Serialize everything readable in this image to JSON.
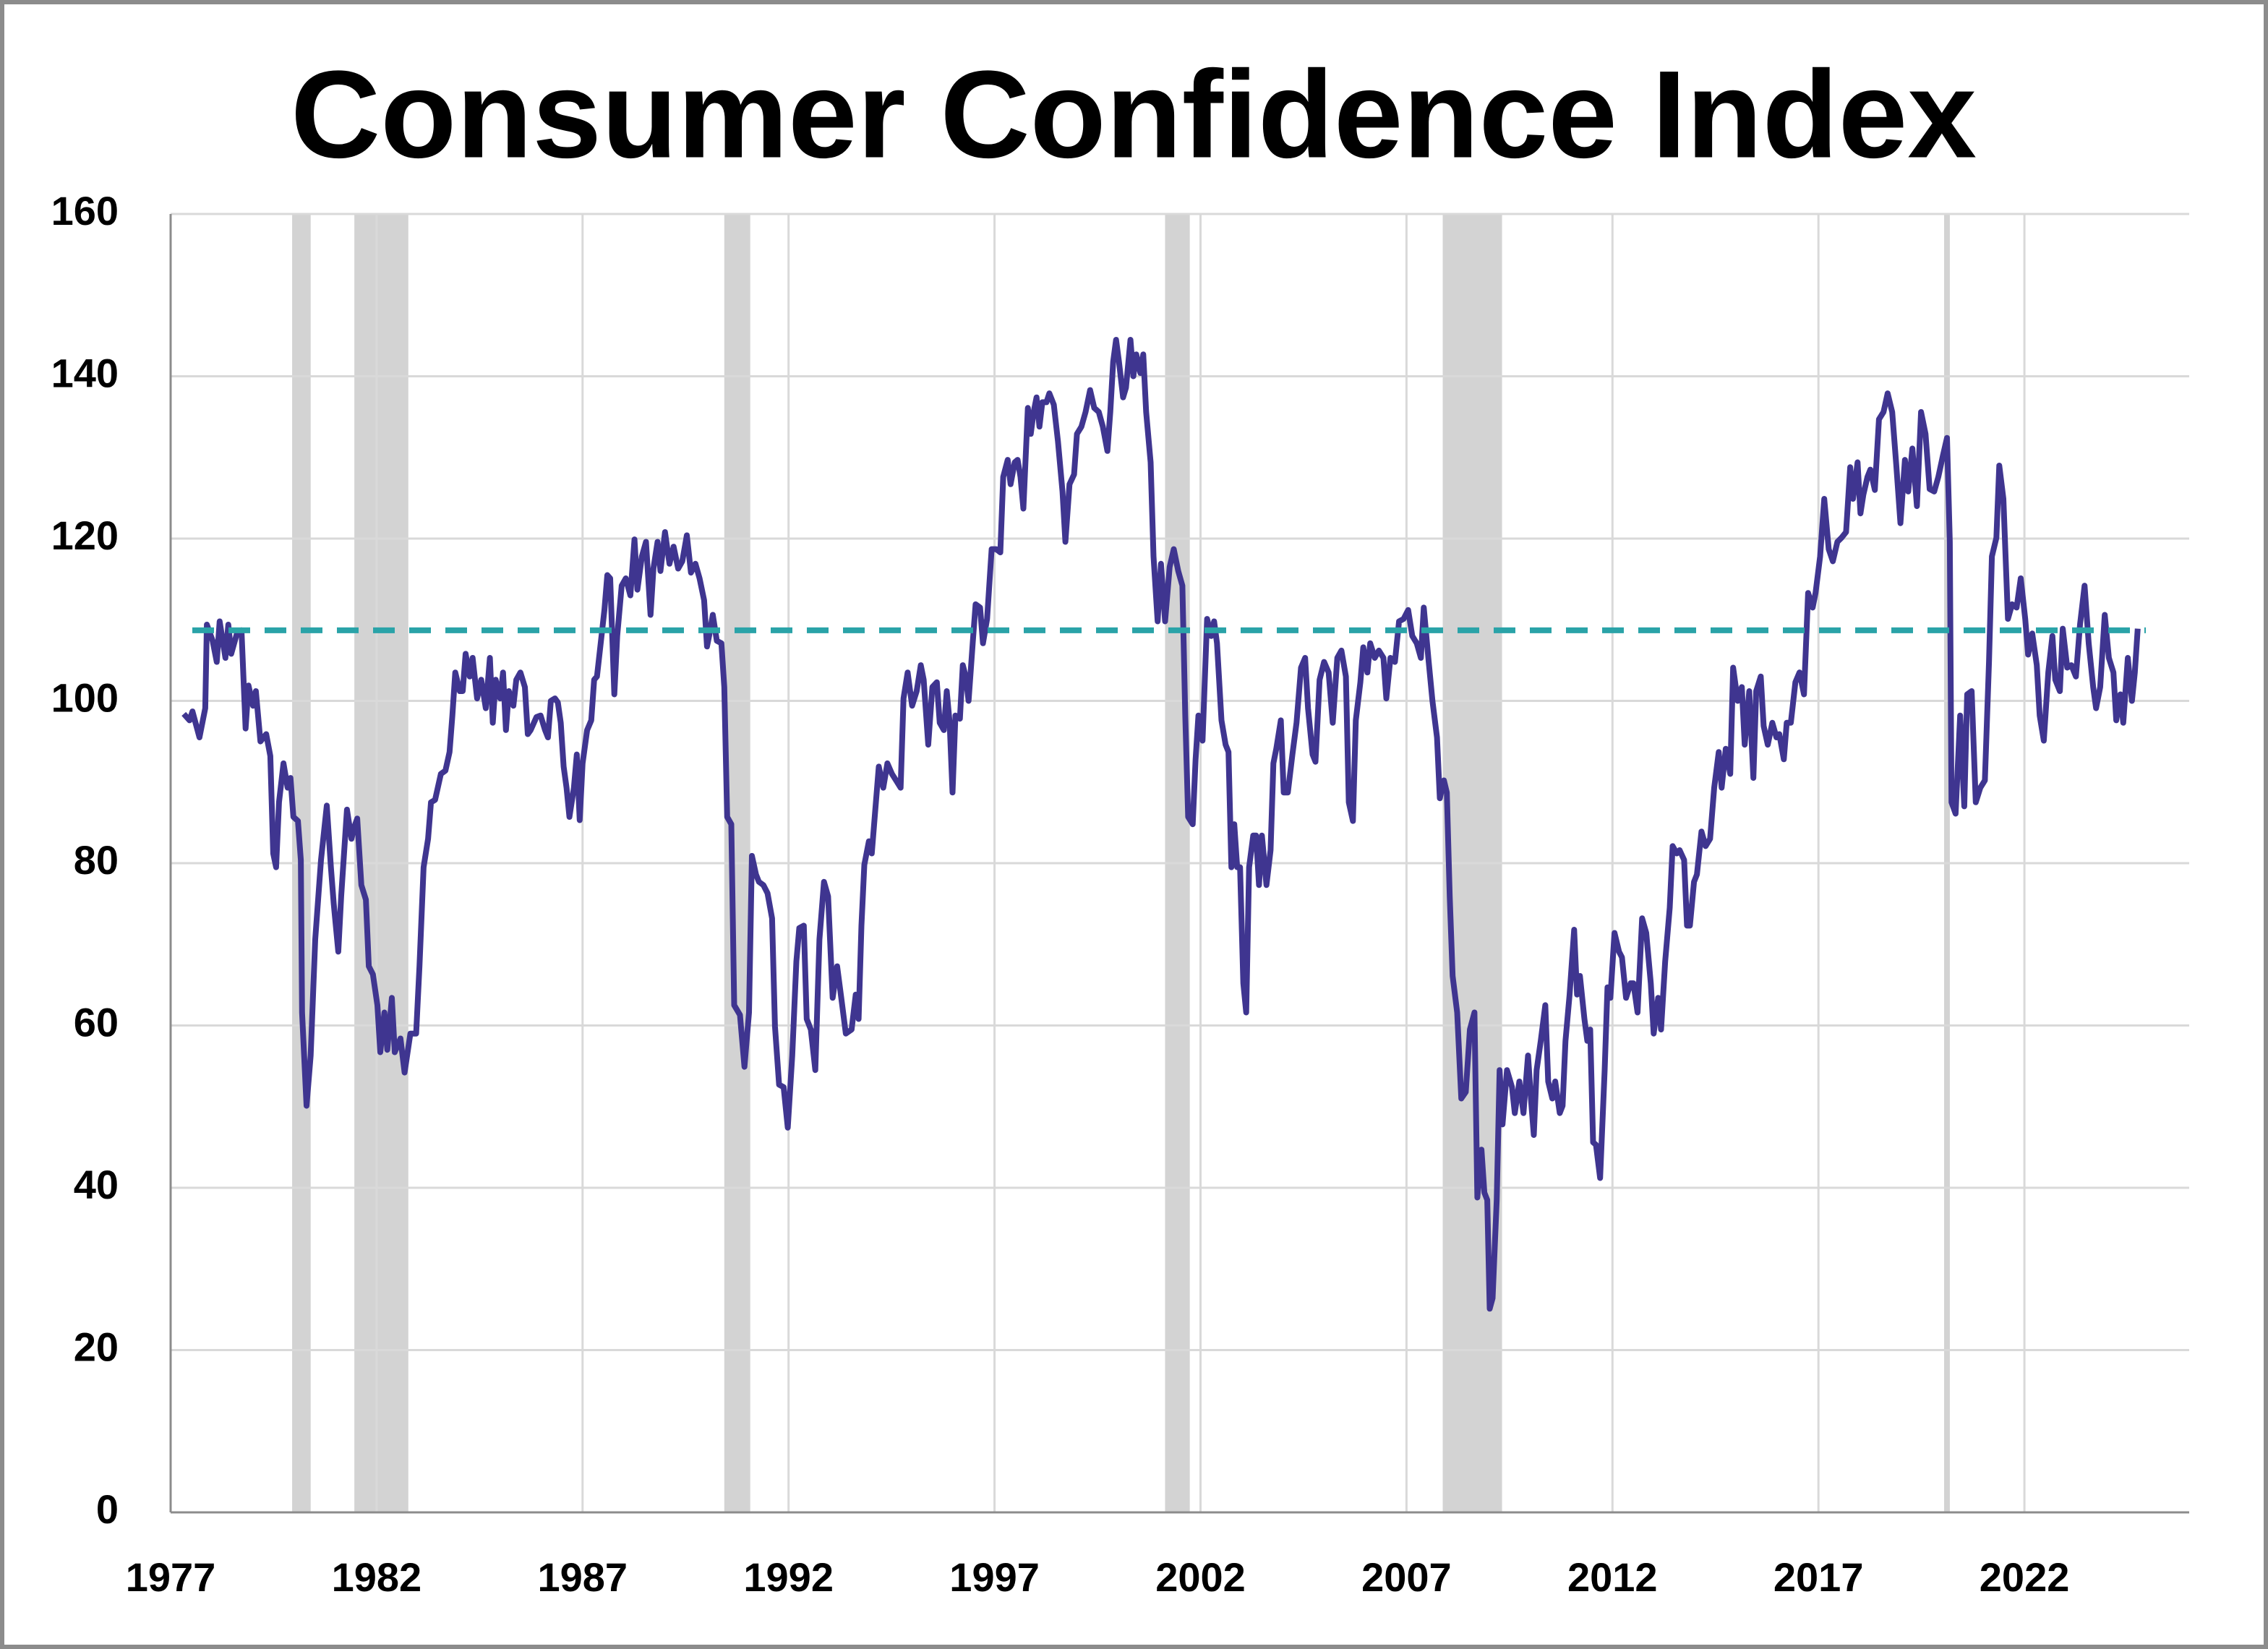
{
  "chart_data": {
    "type": "line",
    "title": "Consumer Confidence Index",
    "x": [
      1977.32,
      1977.46,
      1977.53,
      1977.7,
      1977.84,
      1977.88,
      1978.02,
      1978.12,
      1978.19,
      1978.33,
      1978.4,
      1978.47,
      1978.61,
      1978.72,
      1978.82,
      1978.89,
      1979.0,
      1979.07,
      1979.18,
      1979.32,
      1979.42,
      1979.49,
      1979.56,
      1979.63,
      1979.74,
      1979.84,
      1979.91,
      1979.98,
      1980.09,
      1980.16,
      1980.19,
      1980.3,
      1980.4,
      1980.51,
      1980.65,
      1980.79,
      1980.89,
      1980.96,
      1981.07,
      1981.14,
      1981.28,
      1981.39,
      1981.46,
      1981.53,
      1981.63,
      1981.74,
      1981.81,
      1981.91,
      1982.02,
      1982.09,
      1982.19,
      1982.26,
      1982.37,
      1982.44,
      1982.58,
      1982.68,
      1982.82,
      1982.96,
      1983.04,
      1983.14,
      1983.25,
      1983.32,
      1983.42,
      1983.56,
      1983.67,
      1983.77,
      1983.84,
      1983.91,
      1984.02,
      1984.09,
      1984.16,
      1984.26,
      1984.33,
      1984.44,
      1984.54,
      1984.65,
      1984.75,
      1984.82,
      1984.89,
      1985.0,
      1985.07,
      1985.14,
      1985.21,
      1985.32,
      1985.39,
      1985.49,
      1985.6,
      1985.67,
      1985.74,
      1985.88,
      1985.98,
      1986.09,
      1986.16,
      1986.23,
      1986.33,
      1986.4,
      1986.47,
      1986.54,
      1986.61,
      1986.68,
      1986.79,
      1986.86,
      1986.93,
      1987.0,
      1987.11,
      1987.21,
      1987.28,
      1987.35,
      1987.46,
      1987.53,
      1987.6,
      1987.67,
      1987.77,
      1987.84,
      1987.95,
      1988.05,
      1988.16,
      1988.26,
      1988.33,
      1988.44,
      1988.54,
      1988.65,
      1988.72,
      1988.82,
      1988.89,
      1989.0,
      1989.11,
      1989.21,
      1989.32,
      1989.42,
      1989.53,
      1989.63,
      1989.74,
      1989.84,
      1989.95,
      1990.02,
      1990.09,
      1990.16,
      1990.26,
      1990.37,
      1990.44,
      1990.51,
      1990.61,
      1990.68,
      1990.82,
      1990.93,
      1991.04,
      1991.11,
      1991.21,
      1991.28,
      1991.39,
      1991.49,
      1991.6,
      1991.67,
      1991.77,
      1991.88,
      1991.98,
      1992.09,
      1992.19,
      1992.26,
      1992.37,
      1992.44,
      1992.54,
      1992.65,
      1992.75,
      1992.86,
      1992.96,
      1993.07,
      1993.18,
      1993.28,
      1993.39,
      1993.53,
      1993.63,
      1993.7,
      1993.77,
      1993.84,
      1993.95,
      1994.02,
      1994.12,
      1994.19,
      1994.3,
      1994.4,
      1994.51,
      1994.61,
      1994.72,
      1994.79,
      1994.89,
      1995.0,
      1995.11,
      1995.21,
      1995.28,
      1995.39,
      1995.49,
      1995.6,
      1995.67,
      1995.77,
      1995.84,
      1995.91,
      1995.98,
      1996.05,
      1996.16,
      1996.23,
      1996.3,
      1996.37,
      1996.47,
      1996.54,
      1996.65,
      1996.72,
      1996.82,
      1996.93,
      1997.04,
      1997.14,
      1997.21,
      1997.32,
      1997.39,
      1997.49,
      1997.56,
      1997.63,
      1997.7,
      1997.81,
      1997.88,
      1997.95,
      1998.02,
      1998.09,
      1998.16,
      1998.26,
      1998.33,
      1998.44,
      1998.54,
      1998.65,
      1998.72,
      1998.82,
      1998.93,
      1999.0,
      1999.11,
      1999.21,
      1999.32,
      1999.42,
      1999.53,
      1999.63,
      1999.74,
      1999.81,
      1999.88,
      1999.95,
      2000.02,
      2000.12,
      2000.19,
      2000.3,
      2000.37,
      2000.44,
      2000.54,
      2000.61,
      2000.68,
      2000.79,
      2000.86,
      2000.96,
      2001.04,
      2001.14,
      2001.25,
      2001.35,
      2001.46,
      2001.56,
      2001.63,
      2001.7,
      2001.81,
      2001.88,
      2001.95,
      2002.05,
      2002.16,
      2002.26,
      2002.33,
      2002.4,
      2002.51,
      2002.61,
      2002.68,
      2002.75,
      2002.82,
      2002.89,
      2002.96,
      2003.04,
      2003.11,
      2003.18,
      2003.28,
      2003.35,
      2003.42,
      2003.49,
      2003.6,
      2003.7,
      2003.77,
      2003.84,
      2003.95,
      2004.02,
      2004.12,
      2004.23,
      2004.33,
      2004.44,
      2004.54,
      2004.61,
      2004.72,
      2004.79,
      2004.89,
      2005.0,
      2005.11,
      2005.21,
      2005.32,
      2005.42,
      2005.53,
      2005.6,
      2005.7,
      2005.77,
      2005.88,
      2005.95,
      2006.05,
      2006.12,
      2006.23,
      2006.33,
      2006.44,
      2006.51,
      2006.61,
      2006.72,
      2006.82,
      2006.93,
      2007.04,
      2007.14,
      2007.25,
      2007.35,
      2007.42,
      2007.53,
      2007.63,
      2007.74,
      2007.81,
      2007.91,
      2007.98,
      2008.05,
      2008.12,
      2008.23,
      2008.33,
      2008.44,
      2008.54,
      2008.65,
      2008.72,
      2008.82,
      2008.89,
      2008.96,
      2009.02,
      2009.09,
      2009.19,
      2009.26,
      2009.33,
      2009.44,
      2009.56,
      2009.63,
      2009.74,
      2009.84,
      2009.95,
      2010.02,
      2010.09,
      2010.16,
      2010.26,
      2010.37,
      2010.44,
      2010.54,
      2010.61,
      2010.72,
      2010.79,
      2010.86,
      2010.96,
      2011.07,
      2011.14,
      2011.21,
      2011.32,
      2011.39,
      2011.46,
      2011.53,
      2011.6,
      2011.7,
      2011.81,
      2011.88,
      2011.95,
      2012.05,
      2012.16,
      2012.23,
      2012.33,
      2012.44,
      2012.51,
      2012.61,
      2012.72,
      2012.82,
      2012.93,
      2013.0,
      2013.11,
      2013.18,
      2013.28,
      2013.39,
      2013.46,
      2013.56,
      2013.63,
      2013.74,
      2013.81,
      2013.88,
      2013.98,
      2014.05,
      2014.16,
      2014.26,
      2014.37,
      2014.47,
      2014.58,
      2014.65,
      2014.75,
      2014.86,
      2014.93,
      2015.04,
      2015.14,
      2015.21,
      2015.32,
      2015.42,
      2015.49,
      2015.6,
      2015.67,
      2015.77,
      2015.88,
      2015.98,
      2016.05,
      2016.16,
      2016.23,
      2016.33,
      2016.44,
      2016.54,
      2016.65,
      2016.75,
      2016.86,
      2016.93,
      2017.04,
      2017.14,
      2017.25,
      2017.35,
      2017.46,
      2017.56,
      2017.67,
      2017.77,
      2017.84,
      2017.95,
      2018.02,
      2018.09,
      2018.19,
      2018.26,
      2018.37,
      2018.47,
      2018.58,
      2018.68,
      2018.79,
      2018.89,
      2018.99,
      2019.1,
      2019.18,
      2019.28,
      2019.39,
      2019.49,
      2019.6,
      2019.7,
      2019.81,
      2019.91,
      2020.02,
      2020.12,
      2020.19,
      2020.23,
      2020.33,
      2020.44,
      2020.54,
      2020.61,
      2020.72,
      2020.82,
      2020.93,
      2021.04,
      2021.14,
      2021.21,
      2021.32,
      2021.39,
      2021.49,
      2021.6,
      2021.7,
      2021.81,
      2021.91,
      2022.02,
      2022.09,
      2022.19,
      2022.3,
      2022.37,
      2022.47,
      2022.58,
      2022.68,
      2022.75,
      2022.86,
      2022.93,
      2023.04,
      2023.14,
      2023.25,
      2023.35,
      2023.46,
      2023.56,
      2023.67,
      2023.74,
      2023.84,
      2023.95,
      2024.05,
      2024.16,
      2024.23,
      2024.33,
      2024.4,
      2024.51,
      2024.61,
      2024.68,
      2024.75
    ],
    "values": [
      98.4,
      97.6,
      98.7,
      95.5,
      99.1,
      109.4,
      107.4,
      104.8,
      109.8,
      105.3,
      109.4,
      105.8,
      108.3,
      108.7,
      96.6,
      101.9,
      99.4,
      101.2,
      95.0,
      95.9,
      93.2,
      81.2,
      79.5,
      87.5,
      92.3,
      89.3,
      90.5,
      85.7,
      85.2,
      80.4,
      61.6,
      50.1,
      56.3,
      70.6,
      80.4,
      87.1,
      79.5,
      75.0,
      69.1,
      75.9,
      86.6,
      83.0,
      84.5,
      85.5,
      77.3,
      75.5,
      67.3,
      66.3,
      62.5,
      56.7,
      61.6,
      57.0,
      63.4,
      56.7,
      58.4,
      54.2,
      59.0,
      59.0,
      67.3,
      79.5,
      83.0,
      87.5,
      87.8,
      91.0,
      91.4,
      93.7,
      98.2,
      103.5,
      101.2,
      101.2,
      105.8,
      103.0,
      105.3,
      100.3,
      102.6,
      99.1,
      105.3,
      97.3,
      102.6,
      100.3,
      103.5,
      96.4,
      101.2,
      99.4,
      102.6,
      103.5,
      101.7,
      95.9,
      96.4,
      98.0,
      98.2,
      96.4,
      95.5,
      100.0,
      100.3,
      99.8,
      97.3,
      91.9,
      89.3,
      85.7,
      89.3,
      93.4,
      85.3,
      92.3,
      96.4,
      97.6,
      102.6,
      103.0,
      108.0,
      111.2,
      115.5,
      115.1,
      100.8,
      108.0,
      114.2,
      115.1,
      113.0,
      119.9,
      113.7,
      117.8,
      119.6,
      110.6,
      116.3,
      119.6,
      116.0,
      120.8,
      116.9,
      119.0,
      116.3,
      117.2,
      120.4,
      115.8,
      116.9,
      115.1,
      112.4,
      106.7,
      108.5,
      110.6,
      107.4,
      107.1,
      101.7,
      85.7,
      84.8,
      62.5,
      61.3,
      54.9,
      61.6,
      80.9,
      78.6,
      77.7,
      77.3,
      76.3,
      73.2,
      59.9,
      52.7,
      52.4,
      47.4,
      56.3,
      67.9,
      72.0,
      72.3,
      60.8,
      59.5,
      54.5,
      70.6,
      77.7,
      75.9,
      63.4,
      67.3,
      63.4,
      59.0,
      59.5,
      63.8,
      60.8,
      72.3,
      79.8,
      82.7,
      81.2,
      87.5,
      91.9,
      89.3,
      92.3,
      91.0,
      90.2,
      89.3,
      100.3,
      103.5,
      99.4,
      101.2,
      104.4,
      102.6,
      94.6,
      101.7,
      102.3,
      97.3,
      96.4,
      101.2,
      97.3,
      88.7,
      98.2,
      97.8,
      104.4,
      103.0,
      100.0,
      107.1,
      111.9,
      111.5,
      107.1,
      110.1,
      118.7,
      118.7,
      118.3,
      127.6,
      129.7,
      126.7,
      129.4,
      129.7,
      127.6,
      123.7,
      136.1,
      132.9,
      135.6,
      137.4,
      133.8,
      136.8,
      136.8,
      137.9,
      136.5,
      132.0,
      125.8,
      119.6,
      126.7,
      127.9,
      132.9,
      133.8,
      135.6,
      138.3,
      136.1,
      135.6,
      133.8,
      130.8,
      135.6,
      141.8,
      144.5,
      141.8,
      137.4,
      138.6,
      144.5,
      140.0,
      142.7,
      140.4,
      142.7,
      135.6,
      129.4,
      117.8,
      109.8,
      116.9,
      109.8,
      116.5,
      118.7,
      116.0,
      114.2,
      98.2,
      85.7,
      84.8,
      92.8,
      98.2,
      95.1,
      110.1,
      108.0,
      109.8,
      107.1,
      97.6,
      94.6,
      93.7,
      79.5,
      84.8,
      79.5,
      79.5,
      65.2,
      61.6,
      79.5,
      83.4,
      83.4,
      77.3,
      83.4,
      77.3,
      81.6,
      92.3,
      94.1,
      97.6,
      88.7,
      88.7,
      93.4,
      97.3,
      104.1,
      105.3,
      99.1,
      93.4,
      92.5,
      102.6,
      104.8,
      103.5,
      97.3,
      105.3,
      106.2,
      103.0,
      87.5,
      85.2,
      97.6,
      102.3,
      106.6,
      103.5,
      107.1,
      105.3,
      106.2,
      105.3,
      100.3,
      105.3,
      104.8,
      109.8,
      110.1,
      111.2,
      108.0,
      107.1,
      105.3,
      111.5,
      105.3,
      100.0,
      95.5,
      88.0,
      90.2,
      88.7,
      75.9,
      66.1,
      61.6,
      51.0,
      51.8,
      59.5,
      61.6,
      38.8,
      44.7,
      39.4,
      38.5,
      25.1,
      26.4,
      38.5,
      54.5,
      47.8,
      54.5,
      52.4,
      49.2,
      53.1,
      49.2,
      56.3,
      51.0,
      46.5,
      54.5,
      58.1,
      62.5,
      53.1,
      51.0,
      53.1,
      49.2,
      50.1,
      58.1,
      63.8,
      71.8,
      63.8,
      66.1,
      60.8,
      58.1,
      59.5,
      45.6,
      45.3,
      41.2,
      54.5,
      64.7,
      63.4,
      71.4,
      69.1,
      68.4,
      63.4,
      65.2,
      65.2,
      61.6,
      73.2,
      71.4,
      65.2,
      59.0,
      63.4,
      59.5,
      67.9,
      74.5,
      82.1,
      81.2,
      81.6,
      80.4,
      72.3,
      72.3,
      77.7,
      78.6,
      83.9,
      82.1,
      83.0,
      89.3,
      93.7,
      89.3,
      94.1,
      91.0,
      104.1,
      100.0,
      101.7,
      94.6,
      101.2,
      90.5,
      101.2,
      103.0,
      96.9,
      94.6,
      97.3,
      95.5,
      95.9,
      92.8,
      97.3,
      97.3,
      102.3,
      103.5,
      100.8,
      113.3,
      111.5,
      113.3,
      117.8,
      124.9,
      118.7,
      117.2,
      119.6,
      120.1,
      120.8,
      128.8,
      124.9,
      129.4,
      123.1,
      125.4,
      127.6,
      128.5,
      126.0,
      134.7,
      135.6,
      137.9,
      135.6,
      129.0,
      121.9,
      129.7,
      125.8,
      131.1,
      124.0,
      135.6,
      132.9,
      126.1,
      125.8,
      127.6,
      130.2,
      132.4,
      119.6,
      87.5,
      86.1,
      98.2,
      87.0,
      100.8,
      101.2,
      87.5,
      89.3,
      90.2,
      104.8,
      117.8,
      120.1,
      129.0,
      124.9,
      110.1,
      111.9,
      111.5,
      115.1,
      110.1,
      105.7,
      108.3,
      104.4,
      98.2,
      95.1,
      103.5,
      108.0,
      102.6,
      101.2,
      108.9,
      104.1,
      104.4,
      103.0,
      109.4,
      114.2,
      107.1,
      101.7,
      99.1,
      101.7,
      110.6,
      105.3,
      103.5,
      97.6,
      100.8,
      97.3,
      105.3,
      100.0,
      103.5,
      108.9
    ],
    "color": "#3f3590",
    "reference_value": 108.7,
    "reference_color": "#2aa3a8",
    "recessions": [
      [
        1979.95,
        1980.4
      ],
      [
        1981.46,
        1982.77
      ],
      [
        1990.44,
        1991.07
      ],
      [
        2001.14,
        2001.74
      ],
      [
        2007.88,
        2009.32
      ],
      [
        2020.05,
        2020.19
      ]
    ],
    "recession_color": "#d3d3d3",
    "xlim": [
      1977,
      2026
    ],
    "xticks": [
      1977,
      1982,
      1987,
      1992,
      1997,
      2002,
      2007,
      2012,
      2017,
      2022
    ],
    "ylim": [
      0,
      160
    ],
    "yticks": [
      0,
      20,
      40,
      60,
      80,
      100,
      120,
      140,
      160
    ],
    "grid": true
  }
}
